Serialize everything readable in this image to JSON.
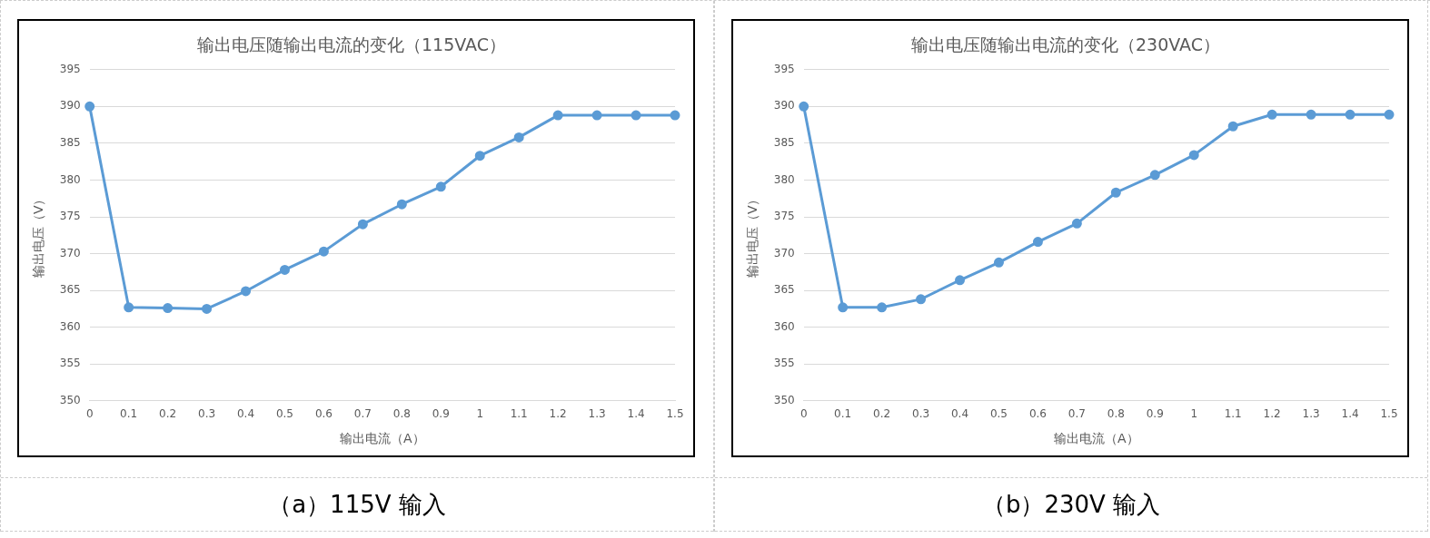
{
  "chart_data": [
    {
      "type": "line",
      "title": "输出电压随输出电流的变化（115VAC）",
      "xlabel": "输出电流（A）",
      "ylabel": "输出电压（V）",
      "categories": [
        "0",
        "0.1",
        "0.2",
        "0.3",
        "0.4",
        "0.5",
        "0.6",
        "0.7",
        "0.8",
        "0.9",
        "1",
        "1.1",
        "1.2",
        "1.3",
        "1.4",
        "1.5"
      ],
      "series": [
        {
          "color": "#5b9bd5",
          "values": [
            390,
            362.7,
            362.6,
            362.5,
            364.9,
            367.8,
            370.3,
            374,
            376.7,
            379.1,
            383.3,
            385.8,
            388.8,
            388.8,
            388.8,
            388.8
          ]
        }
      ],
      "ylim": [
        350,
        395
      ],
      "yticks": [
        350,
        355,
        360,
        365,
        370,
        375,
        380,
        385,
        390,
        395
      ],
      "grid": "y",
      "legend": false,
      "marker": "circle",
      "line_style": "solid",
      "annotations": [
        "（a）115V 输入"
      ]
    },
    {
      "type": "line",
      "title": "输出电压随输出电流的变化（230VAC）",
      "xlabel": "输出电流（A）",
      "ylabel": "输出电压（V）",
      "categories": [
        "0",
        "0.1",
        "0.2",
        "0.3",
        "0.4",
        "0.5",
        "0.6",
        "0.7",
        "0.8",
        "0.9",
        "1",
        "1.1",
        "1.2",
        "1.3",
        "1.4",
        "1.5"
      ],
      "series": [
        {
          "color": "#5b9bd5",
          "values": [
            390,
            362.7,
            362.7,
            363.8,
            366.4,
            368.8,
            371.6,
            374.1,
            378.3,
            380.7,
            383.4,
            387.3,
            388.9,
            388.9,
            388.9,
            388.9
          ]
        }
      ],
      "ylim": [
        350,
        395
      ],
      "yticks": [
        350,
        355,
        360,
        365,
        370,
        375,
        380,
        385,
        390,
        395
      ],
      "grid": "y",
      "legend": false,
      "marker": "circle",
      "line_style": "solid",
      "annotations": [
        "（b）230V 输入"
      ]
    }
  ]
}
